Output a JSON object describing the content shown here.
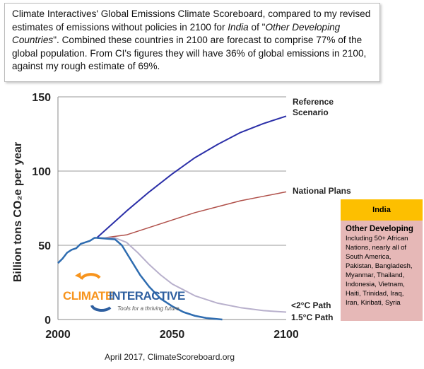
{
  "caption": {
    "text_a": "Climate Interactives' Global Emissions Climate Scoreboard, compared to my revised estimates of emissions without policies in 2100 for ",
    "italic_a": "India",
    "text_b": " of \"",
    "italic_b": "Other Developing Countries",
    "text_c": "\". Combined these countries in 2100 are forecast to comprise 77% of the global population. From CI's figures they will have 36% of global emissions in 2100, against my rough estimate of 69%."
  },
  "legend_box": {
    "header": "India",
    "title": "Other Developing",
    "body": "Including 50+ African Nations, nearly all of South America, Pakistan, Bangladesh, Myanmar, Thailand, Indonesia, Vietnam, Haiti, Trinidad, Iraq, Iran, Kiribati, Syria",
    "header_color": "#fdbf00",
    "body_color": "#e6b8b7"
  },
  "logo": {
    "text_a": "CLIMATE",
    "text_b": "INTERACTIVE",
    "tagline": "Tools for a thriving future"
  },
  "footer": "April 2017,  ClimateScoreboard.org",
  "chart_data": {
    "type": "line",
    "ylabel": "Billion tons CO₂e per year",
    "xlim": [
      2000,
      2100
    ],
    "ylim": [
      0,
      150
    ],
    "xticks": [
      2000,
      2050,
      2100
    ],
    "yticks": [
      0,
      50,
      100,
      150
    ],
    "grid": "horizontal",
    "series": [
      {
        "name": "",
        "color": "#2e6cb0",
        "points": [
          [
            2000,
            38
          ],
          [
            2002,
            41
          ],
          [
            2004,
            45
          ],
          [
            2006,
            47
          ],
          [
            2008,
            48
          ],
          [
            2010,
            51
          ],
          [
            2012,
            52
          ],
          [
            2014,
            53
          ],
          [
            2016,
            55
          ],
          [
            2017,
            55
          ]
        ]
      },
      {
        "name": "Reference Scenario",
        "color": "#2b2fa8",
        "points": [
          [
            2017,
            55
          ],
          [
            2030,
            73
          ],
          [
            2040,
            86
          ],
          [
            2050,
            98
          ],
          [
            2060,
            109
          ],
          [
            2070,
            118
          ],
          [
            2080,
            126
          ],
          [
            2090,
            132
          ],
          [
            2100,
            137
          ]
        ]
      },
      {
        "name": "National Plans",
        "color": "#b0504a",
        "points": [
          [
            2017,
            55
          ],
          [
            2020,
            55
          ],
          [
            2030,
            57
          ],
          [
            2040,
            62
          ],
          [
            2050,
            67
          ],
          [
            2060,
            72
          ],
          [
            2070,
            76
          ],
          [
            2080,
            80
          ],
          [
            2090,
            83
          ],
          [
            2100,
            86
          ]
        ]
      },
      {
        "name": "<2°C Path",
        "color": "#b8b0cc",
        "points": [
          [
            2017,
            55
          ],
          [
            2025,
            55
          ],
          [
            2030,
            52
          ],
          [
            2035,
            45
          ],
          [
            2040,
            37
          ],
          [
            2045,
            30
          ],
          [
            2050,
            24
          ],
          [
            2060,
            16
          ],
          [
            2070,
            11
          ],
          [
            2080,
            8
          ],
          [
            2090,
            6
          ],
          [
            2100,
            5
          ]
        ]
      },
      {
        "name": "1.5°C Path",
        "color": "#2e6cb0",
        "points": [
          [
            2017,
            55
          ],
          [
            2025,
            54
          ],
          [
            2028,
            50
          ],
          [
            2032,
            40
          ],
          [
            2036,
            30
          ],
          [
            2040,
            22
          ],
          [
            2045,
            14
          ],
          [
            2050,
            9
          ],
          [
            2055,
            5
          ],
          [
            2060,
            2.5
          ],
          [
            2065,
            1
          ],
          [
            2072,
            0
          ]
        ]
      }
    ]
  }
}
